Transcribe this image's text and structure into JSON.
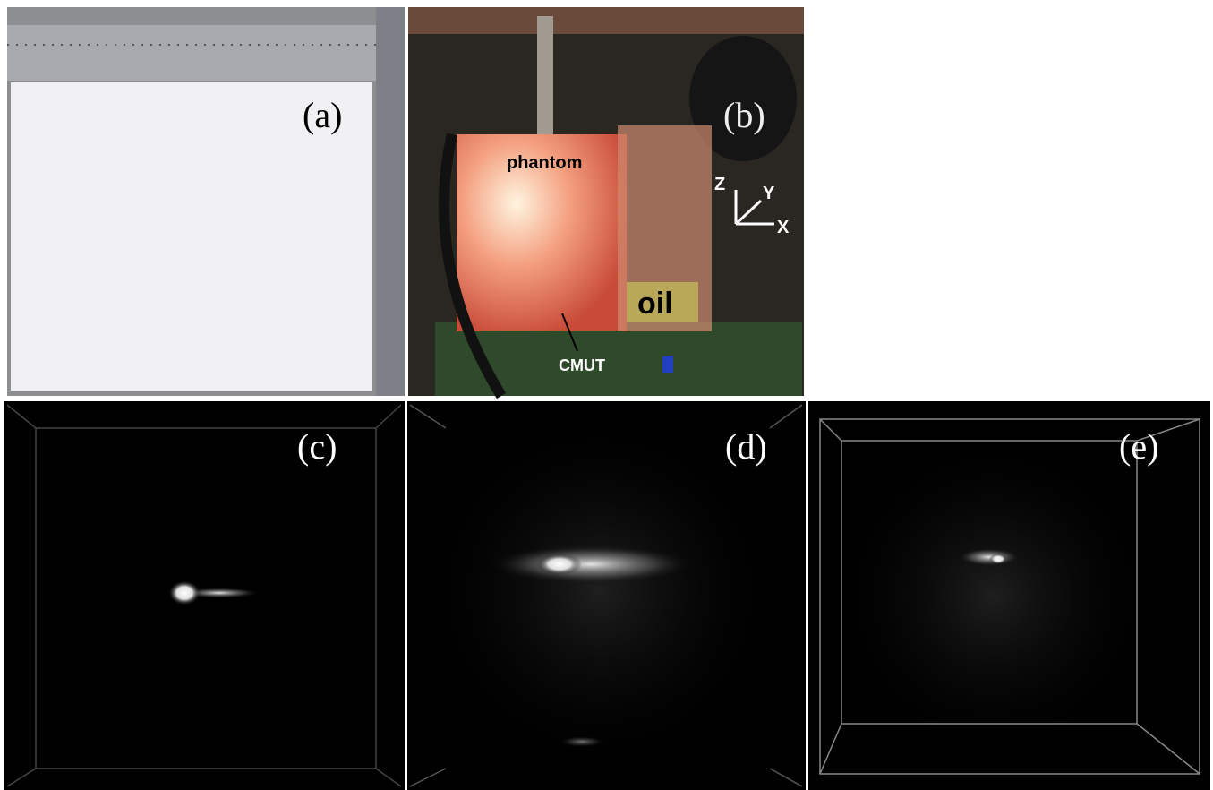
{
  "panels": [
    {
      "label": "(a)"
    },
    {
      "label": "(b)",
      "annotations": [
        "phantom",
        "oil",
        "CMUT"
      ],
      "axes": [
        "Z",
        "Y",
        "X"
      ]
    },
    {
      "label": "(c)"
    },
    {
      "label": "(d)"
    },
    {
      "label": "(e)"
    }
  ]
}
